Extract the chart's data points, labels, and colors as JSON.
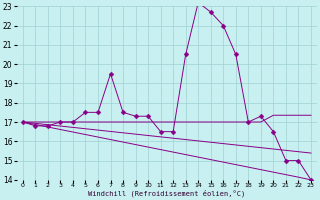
{
  "xlabel": "Windchill (Refroidissement éolien,°C)",
  "background_color": "#c8f0f0",
  "grid_color": "#a0d0d0",
  "line_color": "#880088",
  "hours": [
    0,
    1,
    2,
    3,
    4,
    5,
    6,
    7,
    8,
    9,
    10,
    11,
    12,
    13,
    14,
    15,
    16,
    17,
    18,
    19,
    20,
    21,
    22,
    23
  ],
  "series_main": [
    17.0,
    16.8,
    16.8,
    17.0,
    17.0,
    17.5,
    17.5,
    19.5,
    17.5,
    17.3,
    17.3,
    16.5,
    16.5,
    20.5,
    23.2,
    22.7,
    22.0,
    20.5,
    17.0,
    17.3,
    16.5,
    15.0,
    15.0,
    14.0
  ],
  "series_flat": [
    17.0,
    17.0,
    17.0,
    17.0,
    17.0,
    17.0,
    17.0,
    17.0,
    17.0,
    17.0,
    17.0,
    17.0,
    17.0,
    17.0,
    17.0,
    17.0,
    17.0,
    17.0,
    17.0,
    17.0,
    17.35,
    17.35,
    17.35,
    17.35
  ],
  "series_diag1": [
    17.0,
    16.93,
    16.86,
    16.79,
    16.72,
    16.65,
    16.58,
    16.51,
    16.44,
    16.37,
    16.3,
    16.23,
    16.16,
    16.09,
    16.02,
    15.95,
    15.88,
    15.81,
    15.74,
    15.67,
    15.6,
    15.53,
    15.46,
    15.39
  ],
  "series_diag2": [
    17.0,
    16.87,
    16.74,
    16.61,
    16.48,
    16.35,
    16.22,
    16.09,
    15.96,
    15.83,
    15.7,
    15.57,
    15.44,
    15.31,
    15.18,
    15.05,
    14.92,
    14.79,
    14.66,
    14.53,
    14.4,
    14.27,
    14.14,
    14.0
  ],
  "ylim": [
    14,
    23
  ],
  "yticks": [
    14,
    15,
    16,
    17,
    18,
    19,
    20,
    21,
    22,
    23
  ],
  "xlim": [
    -0.5,
    23.5
  ],
  "markersize": 2.5
}
